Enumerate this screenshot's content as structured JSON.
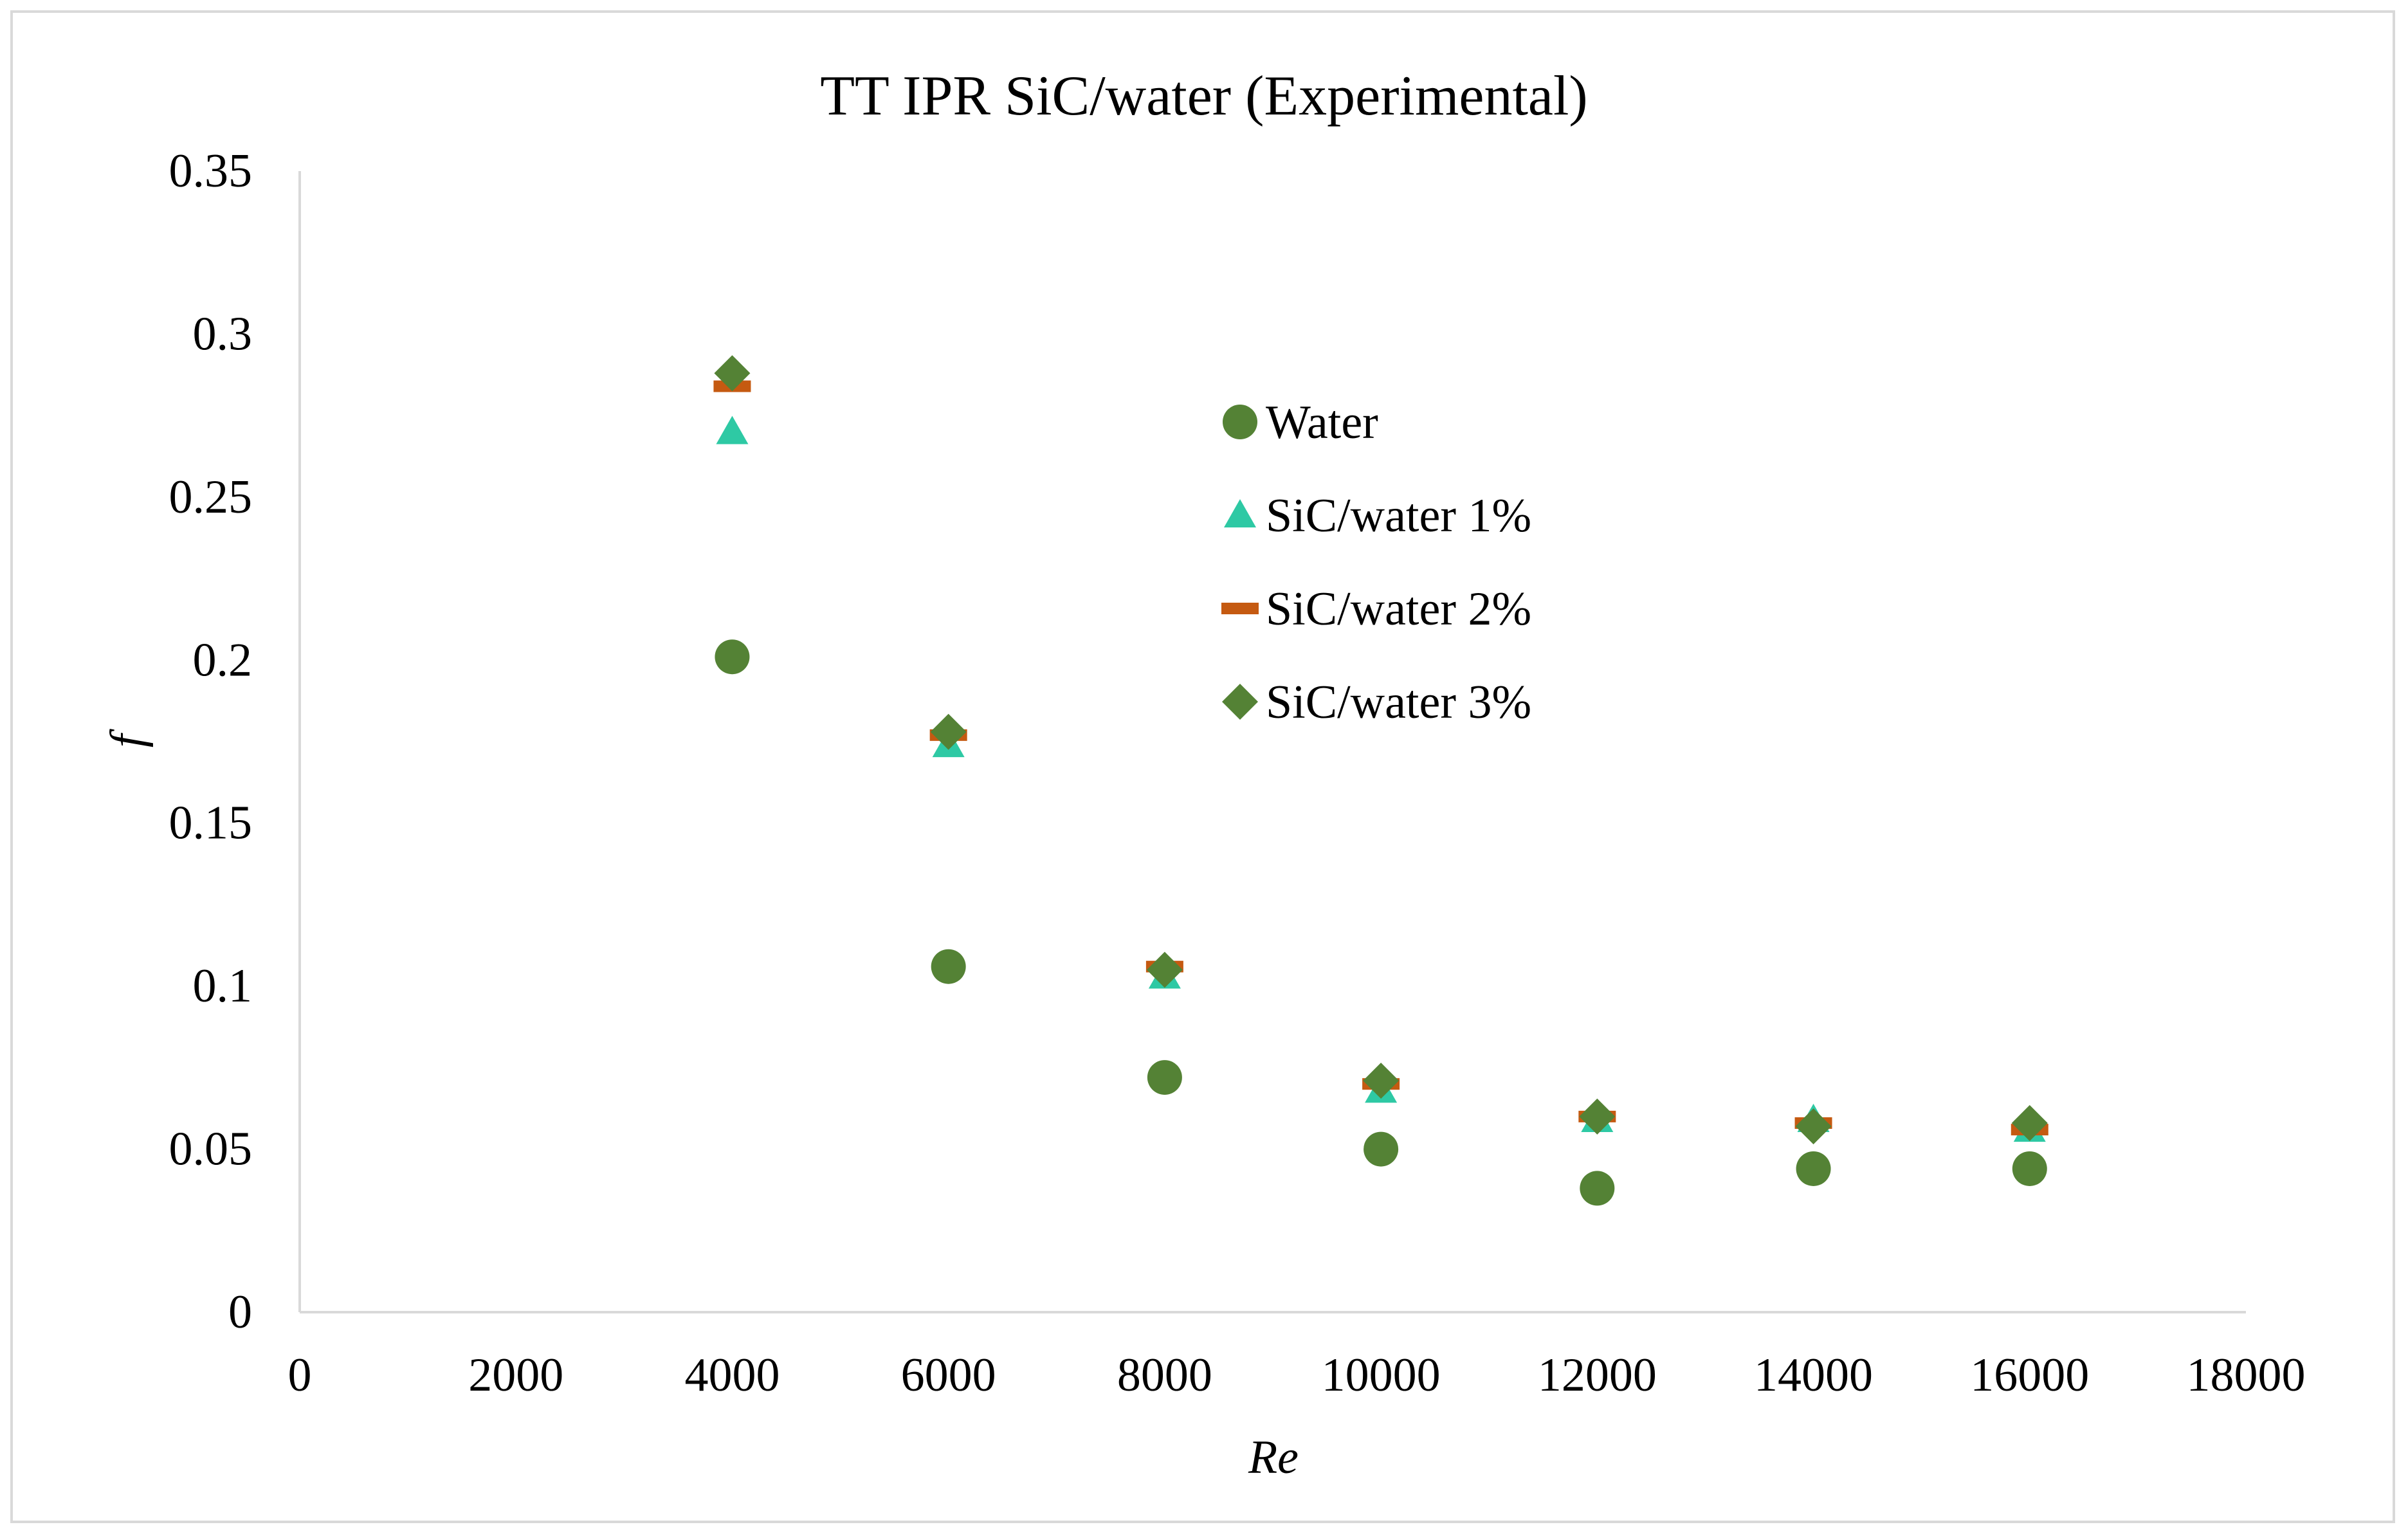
{
  "chart_data": {
    "type": "scatter",
    "title": "TT IPR SiC/water (Experimental)",
    "xlabel": "Re",
    "ylabel": "f",
    "xlim": [
      0,
      18000
    ],
    "ylim": [
      0,
      0.35
    ],
    "x_ticks": [
      0,
      2000,
      4000,
      6000,
      8000,
      10000,
      12000,
      14000,
      16000,
      18000
    ],
    "y_ticks": [
      0,
      0.05,
      0.1,
      0.15,
      0.2,
      0.25,
      0.3,
      0.35
    ],
    "x_tick_labels": [
      "0",
      "2000",
      "4000",
      "6000",
      "8000",
      "10000",
      "12000",
      "14000",
      "16000",
      "18000"
    ],
    "y_tick_labels": [
      "0",
      "0.05",
      "0.1",
      "0.15",
      "0.2",
      "0.25",
      "0.3",
      "0.35"
    ],
    "grid": false,
    "legend_position": "upper-middle",
    "x": [
      4000,
      6000,
      8000,
      10000,
      12000,
      14000,
      16000
    ],
    "series": [
      {
        "name": "Water",
        "marker": "circle",
        "color": "#548235",
        "values": [
          0.201,
          0.106,
          0.072,
          0.05,
          0.038,
          0.044,
          0.044
        ]
      },
      {
        "name": "SiC/water 1%",
        "marker": "triangle",
        "color": "#2ec9a4",
        "values": [
          0.27,
          0.174,
          0.103,
          0.068,
          0.059,
          0.059,
          0.056
        ]
      },
      {
        "name": "SiC/water 2%",
        "marker": "dash",
        "color": "#c55a11",
        "values": [
          0.284,
          0.177,
          0.106,
          0.07,
          0.06,
          0.058,
          0.056
        ]
      },
      {
        "name": "SiC/water 3%",
        "marker": "diamond",
        "color": "#548235",
        "values": [
          0.288,
          0.178,
          0.105,
          0.071,
          0.06,
          0.057,
          0.058
        ]
      }
    ]
  }
}
